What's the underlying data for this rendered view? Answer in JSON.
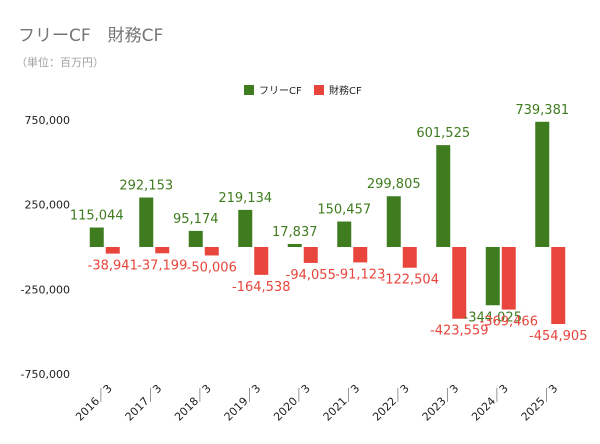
{
  "chart_data": {
    "type": "bar",
    "title": "フリーCF　財務CF",
    "subtitle": "（単位：百万円）",
    "categories": [
      "2016／3",
      "2017／3",
      "2018／3",
      "2019／3",
      "2020／3",
      "2021／3",
      "2022／3",
      "2023／3",
      "2024／3",
      "2025／3"
    ],
    "series": [
      {
        "name": "フリーCF",
        "color": "#3f7c1f",
        "label_color": "#3f7c1f",
        "values": [
          115044,
          292153,
          95174,
          219134,
          17837,
          150457,
          299805,
          601525,
          -344025,
          739381
        ],
        "labels": [
          "115,044",
          "292,153",
          "95,174",
          "219,134",
          "17,837",
          "150,457",
          "299,805",
          "601,525",
          "-344,025",
          "739,381"
        ]
      },
      {
        "name": "財務CF",
        "color": "#e8453c",
        "label_color": "#e8453c",
        "values": [
          -38941,
          -37199,
          -50006,
          -164538,
          -94055,
          -91123,
          -122504,
          -423559,
          -369466,
          -454905
        ],
        "labels": [
          "-38,941",
          "-37,199",
          "-50,006",
          "-164,538",
          "-94,055",
          "-91,123",
          "-122,504",
          "-423,559",
          "-369,466",
          "-454,905"
        ]
      }
    ],
    "yticks": [
      750000,
      250000,
      -250000,
      -750000
    ],
    "ytick_labels": [
      "750,000",
      "250,000",
      "-250,000",
      "-750,000"
    ],
    "ylim": [
      -750000,
      750000
    ],
    "grid": false,
    "legend_position": "top-center"
  }
}
